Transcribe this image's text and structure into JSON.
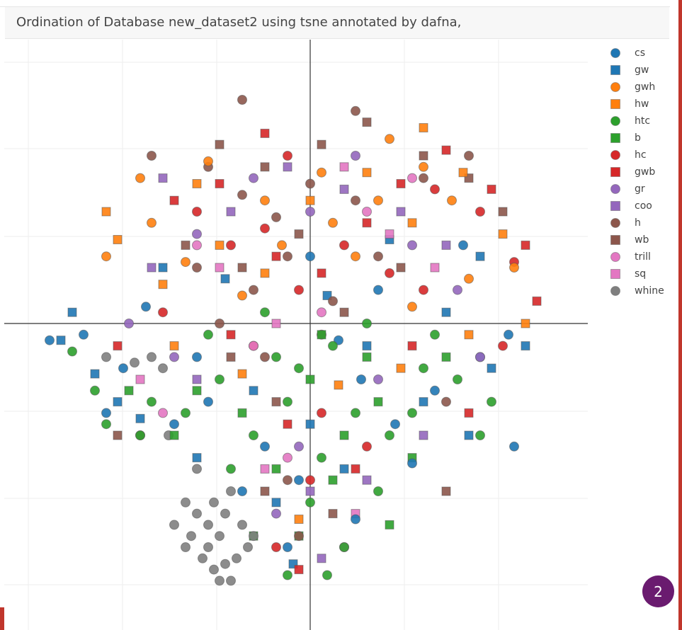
{
  "title": "Ordination of Database new_dataset2 using tsne annotated by dafna,",
  "badge": "2",
  "chart_data": {
    "type": "scatter",
    "title": "Ordination of Database new_dataset2 using tsne annotated by dafna,",
    "xlabel": "",
    "ylabel": "",
    "xlim": [
      -50,
      50
    ],
    "ylim": [
      -50,
      50
    ],
    "grid": true,
    "legend_position": "right",
    "series": [
      {
        "name": "cs",
        "marker": "circle",
        "color": "#1f77b4",
        "points": [
          [
            -40,
            -2
          ],
          [
            -33,
            -8
          ],
          [
            -18,
            -14
          ],
          [
            -8,
            -22
          ],
          [
            5,
            -3
          ],
          [
            12,
            6
          ],
          [
            22,
            -12
          ],
          [
            30,
            -6
          ],
          [
            -2,
            -28
          ],
          [
            -24,
            -18
          ],
          [
            35,
            -2
          ],
          [
            18,
            -25
          ],
          [
            -12,
            -30
          ],
          [
            -4,
            -40
          ],
          [
            -46,
            -3
          ],
          [
            -36,
            -16
          ],
          [
            36,
            -22
          ],
          [
            8,
            -35
          ],
          [
            -29,
            3
          ],
          [
            27,
            14
          ],
          [
            15,
            -18
          ],
          [
            0,
            12
          ],
          [
            -20,
            -6
          ],
          [
            9,
            -10
          ]
        ]
      },
      {
        "name": "gw",
        "marker": "square",
        "color": "#1f77b4",
        "points": [
          [
            -44,
            -3
          ],
          [
            -38,
            -9
          ],
          [
            -30,
            -17
          ],
          [
            -20,
            -24
          ],
          [
            -10,
            -12
          ],
          [
            0,
            -18
          ],
          [
            10,
            -4
          ],
          [
            20,
            -14
          ],
          [
            28,
            -20
          ],
          [
            32,
            -8
          ],
          [
            38,
            -4
          ],
          [
            -15,
            8
          ],
          [
            3,
            5
          ],
          [
            -42,
            2
          ],
          [
            14,
            15
          ],
          [
            -26,
            10
          ],
          [
            -6,
            -32
          ],
          [
            24,
            2
          ],
          [
            -3,
            -43
          ],
          [
            6,
            -26
          ],
          [
            -34,
            -14
          ],
          [
            30,
            12
          ]
        ]
      },
      {
        "name": "gwh",
        "marker": "circle",
        "color": "#ff7f0e",
        "points": [
          [
            -28,
            18
          ],
          [
            -22,
            11
          ],
          [
            -12,
            5
          ],
          [
            -5,
            14
          ],
          [
            4,
            18
          ],
          [
            12,
            22
          ],
          [
            20,
            28
          ],
          [
            28,
            8
          ],
          [
            36,
            10
          ],
          [
            -30,
            26
          ],
          [
            -18,
            29
          ],
          [
            2,
            27
          ],
          [
            14,
            33
          ],
          [
            25,
            22
          ],
          [
            -8,
            22
          ],
          [
            18,
            3
          ],
          [
            -36,
            12
          ],
          [
            8,
            12
          ]
        ]
      },
      {
        "name": "hw",
        "marker": "square",
        "color": "#ff7f0e",
        "points": [
          [
            -34,
            15
          ],
          [
            -26,
            7
          ],
          [
            -16,
            14
          ],
          [
            -8,
            9
          ],
          [
            0,
            22
          ],
          [
            10,
            27
          ],
          [
            18,
            18
          ],
          [
            27,
            27
          ],
          [
            34,
            16
          ],
          [
            -24,
            -4
          ],
          [
            -12,
            -9
          ],
          [
            5,
            -11
          ],
          [
            16,
            -8
          ],
          [
            28,
            -2
          ],
          [
            38,
            0
          ],
          [
            -36,
            20
          ],
          [
            -20,
            25
          ],
          [
            20,
            35
          ],
          [
            -2,
            -35
          ]
        ]
      },
      {
        "name": "htc",
        "marker": "circle",
        "color": "#2ca02c",
        "points": [
          [
            -42,
            -5
          ],
          [
            -38,
            -12
          ],
          [
            -30,
            -20
          ],
          [
            -22,
            -16
          ],
          [
            -16,
            -10
          ],
          [
            -10,
            -20
          ],
          [
            -4,
            -14
          ],
          [
            2,
            -24
          ],
          [
            8,
            -16
          ],
          [
            14,
            -20
          ],
          [
            20,
            -8
          ],
          [
            26,
            -10
          ],
          [
            32,
            -14
          ],
          [
            -6,
            -6
          ],
          [
            0,
            -32
          ],
          [
            6,
            -40
          ],
          [
            -4,
            -45
          ],
          [
            3,
            -45
          ],
          [
            -28,
            -14
          ],
          [
            -14,
            -26
          ],
          [
            12,
            -30
          ],
          [
            22,
            -2
          ],
          [
            -8,
            2
          ],
          [
            10,
            0
          ],
          [
            -36,
            -18
          ],
          [
            30,
            -20
          ],
          [
            -18,
            -2
          ],
          [
            18,
            -16
          ],
          [
            -2,
            -8
          ],
          [
            4,
            -4
          ]
        ]
      },
      {
        "name": "b",
        "marker": "square",
        "color": "#2ca02c",
        "points": [
          [
            -32,
            -12
          ],
          [
            -24,
            -20
          ],
          [
            -12,
            -16
          ],
          [
            -6,
            -26
          ],
          [
            0,
            -10
          ],
          [
            6,
            -20
          ],
          [
            12,
            -14
          ],
          [
            18,
            -24
          ],
          [
            24,
            -6
          ],
          [
            -2,
            -38
          ],
          [
            4,
            -28
          ],
          [
            -10,
            -38
          ],
          [
            14,
            -36
          ],
          [
            -20,
            -12
          ],
          [
            10,
            -6
          ],
          [
            2,
            -2
          ]
        ]
      },
      {
        "name": "hc",
        "marker": "circle",
        "color": "#d62728",
        "points": [
          [
            -20,
            20
          ],
          [
            -14,
            14
          ],
          [
            -8,
            17
          ],
          [
            -2,
            6
          ],
          [
            6,
            14
          ],
          [
            14,
            9
          ],
          [
            22,
            24
          ],
          [
            30,
            20
          ],
          [
            36,
            11
          ],
          [
            -10,
            -4
          ],
          [
            2,
            -16
          ],
          [
            10,
            -22
          ],
          [
            -6,
            -40
          ],
          [
            0,
            -28
          ],
          [
            -26,
            2
          ],
          [
            20,
            6
          ],
          [
            34,
            -4
          ],
          [
            -4,
            30
          ]
        ]
      },
      {
        "name": "gwb",
        "marker": "square",
        "color": "#d62728",
        "points": [
          [
            -24,
            22
          ],
          [
            -16,
            25
          ],
          [
            -6,
            12
          ],
          [
            2,
            9
          ],
          [
            10,
            18
          ],
          [
            16,
            25
          ],
          [
            24,
            31
          ],
          [
            32,
            24
          ],
          [
            38,
            14
          ],
          [
            -14,
            -2
          ],
          [
            -4,
            -18
          ],
          [
            8,
            -26
          ],
          [
            -2,
            -44
          ],
          [
            18,
            -4
          ],
          [
            28,
            -16
          ],
          [
            -34,
            -4
          ],
          [
            40,
            4
          ],
          [
            -8,
            34
          ]
        ]
      },
      {
        "name": "gr",
        "marker": "circle",
        "color": "#9467bd",
        "points": [
          [
            -20,
            16
          ],
          [
            -10,
            26
          ],
          [
            0,
            20
          ],
          [
            8,
            30
          ],
          [
            18,
            14
          ],
          [
            26,
            6
          ],
          [
            -24,
            -6
          ],
          [
            -2,
            -22
          ],
          [
            12,
            -10
          ],
          [
            -6,
            -34
          ],
          [
            30,
            -6
          ],
          [
            -32,
            0
          ]
        ]
      },
      {
        "name": "coo",
        "marker": "square",
        "color": "#9467bd",
        "points": [
          [
            -26,
            26
          ],
          [
            -14,
            20
          ],
          [
            -4,
            28
          ],
          [
            6,
            24
          ],
          [
            16,
            20
          ],
          [
            24,
            14
          ],
          [
            -20,
            -10
          ],
          [
            0,
            -30
          ],
          [
            10,
            -28
          ],
          [
            2,
            -42
          ],
          [
            -28,
            10
          ],
          [
            20,
            -20
          ]
        ]
      },
      {
        "name": "h",
        "marker": "circle",
        "color": "#8c564b",
        "points": [
          [
            -18,
            28
          ],
          [
            -12,
            23
          ],
          [
            -6,
            19
          ],
          [
            0,
            25
          ],
          [
            8,
            22
          ],
          [
            -20,
            10
          ],
          [
            -10,
            6
          ],
          [
            -4,
            12
          ],
          [
            4,
            4
          ],
          [
            12,
            12
          ],
          [
            20,
            26
          ],
          [
            28,
            30
          ],
          [
            -16,
            0
          ],
          [
            -8,
            -6
          ],
          [
            2,
            -2
          ],
          [
            -2,
            -38
          ],
          [
            -4,
            -28
          ],
          [
            24,
            -14
          ],
          [
            -30,
            -20
          ],
          [
            -12,
            40
          ],
          [
            8,
            38
          ],
          [
            -28,
            30
          ]
        ]
      },
      {
        "name": "wb",
        "marker": "square",
        "color": "#8c564b",
        "points": [
          [
            -16,
            32
          ],
          [
            -8,
            28
          ],
          [
            2,
            32
          ],
          [
            10,
            36
          ],
          [
            20,
            30
          ],
          [
            28,
            26
          ],
          [
            -22,
            14
          ],
          [
            -12,
            10
          ],
          [
            -2,
            16
          ],
          [
            6,
            2
          ],
          [
            16,
            10
          ],
          [
            -14,
            -6
          ],
          [
            -6,
            -14
          ],
          [
            4,
            -34
          ],
          [
            -8,
            -30
          ],
          [
            24,
            -30
          ],
          [
            -34,
            -20
          ],
          [
            34,
            20
          ]
        ]
      },
      {
        "name": "trill",
        "marker": "circle",
        "color": "#e377c2",
        "points": [
          [
            -20,
            14
          ],
          [
            -10,
            -4
          ],
          [
            2,
            2
          ],
          [
            10,
            20
          ],
          [
            18,
            26
          ],
          [
            -4,
            -24
          ],
          [
            6,
            -40
          ],
          [
            -26,
            -16
          ]
        ]
      },
      {
        "name": "sq",
        "marker": "square",
        "color": "#e377c2",
        "points": [
          [
            -16,
            10
          ],
          [
            -6,
            0
          ],
          [
            6,
            28
          ],
          [
            14,
            16
          ],
          [
            -8,
            -26
          ],
          [
            8,
            -34
          ],
          [
            22,
            10
          ],
          [
            -30,
            -10
          ]
        ]
      },
      {
        "name": "whine",
        "marker": "circle",
        "color": "#7f7f7f",
        "points": [
          [
            -28,
            -6
          ],
          [
            -31,
            -7
          ],
          [
            -26,
            -8
          ],
          [
            -20,
            -26
          ],
          [
            -17,
            -32
          ],
          [
            -15,
            -34
          ],
          [
            -14,
            -30
          ],
          [
            -12,
            -36
          ],
          [
            -16,
            -38
          ],
          [
            -18,
            -36
          ],
          [
            -20,
            -34
          ],
          [
            -22,
            -32
          ],
          [
            -10,
            -38
          ],
          [
            -11,
            -40
          ],
          [
            -13,
            -42
          ],
          [
            -15,
            -43
          ],
          [
            -18,
            -40
          ],
          [
            -21,
            -38
          ],
          [
            -24,
            -36
          ],
          [
            -22,
            -40
          ],
          [
            -19,
            -42
          ],
          [
            -17,
            -44
          ],
          [
            -16,
            -46
          ],
          [
            -14,
            -46
          ],
          [
            -25,
            -20
          ],
          [
            -36,
            -6
          ]
        ]
      }
    ]
  }
}
